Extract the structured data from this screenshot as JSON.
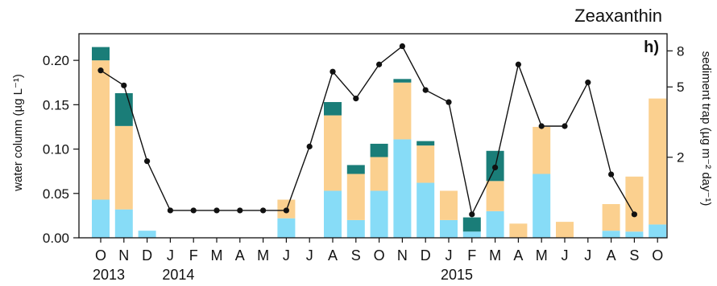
{
  "chart_data": {
    "type": "bar",
    "title": "Zeaxanthin",
    "panel_label": "h)",
    "ylabel": "water column (µg L⁻¹)",
    "y2label": "sediment trap (µg m⁻² day⁻¹)",
    "ylim": [
      0,
      0.23
    ],
    "yticks": [
      "0.00",
      "0.05",
      "0.10",
      "0.15",
      "0.20"
    ],
    "y2_scale": "log",
    "y2lim": [
      0.7,
      10
    ],
    "y2ticks": [
      "2",
      "5",
      "8"
    ],
    "categories": [
      "O",
      "N",
      "D",
      "J",
      "F",
      "M",
      "A",
      "M",
      "J",
      "J",
      "A",
      "S",
      "O",
      "N",
      "D",
      "J",
      "F",
      "M",
      "A",
      "M",
      "J",
      "J",
      "A",
      "S",
      "O"
    ],
    "year_labels": [
      {
        "label": "2013",
        "category_index": 0
      },
      {
        "label": "2014",
        "category_index": 3
      },
      {
        "label": "2015",
        "category_index": 15
      }
    ],
    "series": [
      {
        "color": "#87dcf7",
        "values": [
          0.043,
          0.032,
          0.008,
          0,
          0,
          0,
          0,
          0,
          0.022,
          0,
          0.053,
          0.02,
          0.053,
          0.111,
          0.062,
          0.02,
          0.007,
          0.03,
          0,
          0.072,
          0,
          0,
          0.008,
          0.007,
          0.015
        ]
      },
      {
        "color": "#fbd08f",
        "values": [
          0.157,
          0.094,
          0,
          0,
          0,
          0,
          0,
          0,
          0.021,
          0,
          0.085,
          0.052,
          0.038,
          0.064,
          0.042,
          0.033,
          0,
          0.034,
          0.016,
          0.053,
          0.018,
          0,
          0.03,
          0.062,
          0.142
        ]
      },
      {
        "color": "#1a7d78",
        "values": [
          0.015,
          0.037,
          0,
          0,
          0,
          0,
          0,
          0,
          0,
          0,
          0.015,
          0.01,
          0.015,
          0.004,
          0.005,
          0,
          0.016,
          0.034,
          0,
          0,
          0,
          0,
          0,
          0,
          0
        ]
      }
    ],
    "line_series": {
      "axis": "right",
      "color": "#111111",
      "values": [
        6.2,
        5.1,
        1.9,
        1.0,
        1.0,
        1.0,
        1.0,
        1.0,
        1.0,
        2.3,
        6.1,
        4.3,
        6.7,
        8.5,
        4.8,
        4.1,
        0.95,
        1.75,
        6.7,
        3.0,
        3.0,
        5.3,
        1.6,
        0.95,
        null
      ]
    }
  }
}
